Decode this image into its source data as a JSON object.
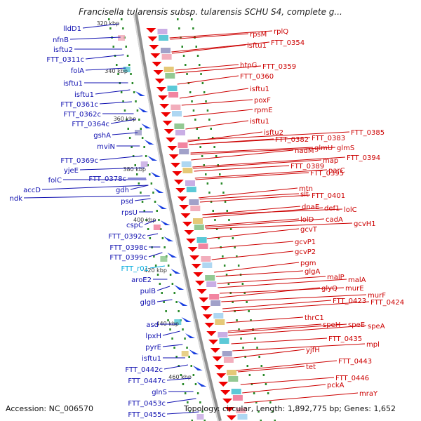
{
  "title": "Francisella tularensis subsp. tularensis SCHU S4, complete g...",
  "accession": "Accession: NC_006570",
  "topology": "Topology: circular, Length: 1,892,775 bp; Genes: 1,652",
  "colors": {
    "left_label": "#1010b0",
    "right_label": "#cc0000",
    "rna_label": "#00aadd",
    "forward_arrow": "#1a3fe0",
    "reverse_arrow": "#ee0000",
    "backbone": "#909090",
    "tick": "#2a8a2a"
  },
  "kbp_ticks": [
    "320 kbp",
    "340 kbp",
    "360 kbp",
    "380 kbp",
    "400 kbp",
    "420 kbp",
    "440 kbp",
    "460 kbp"
  ],
  "left_labels": [
    "lldD1",
    "nfnB",
    "isftu2",
    "FTT_0311c",
    "folA",
    "isftu1",
    "isftu1",
    "FTT_0361c",
    "FTT_0362c",
    "FTT_0364c",
    "gshA",
    "mviN",
    "FTT_0369c",
    "yjeE",
    "folC",
    "accD",
    "ndk",
    "FTT_0378c",
    "gdh",
    "psd",
    "rpsU",
    "cspC",
    "FTT_0392c",
    "FTT_0398c",
    "FTT_0399c",
    "FTT_r01",
    "aroE2",
    "pulB",
    "glgB",
    "asd",
    "lpxH",
    "pyrE",
    "isftu1",
    "FTT_0442c",
    "FTT_0447c",
    "glnS",
    "FTT_0453c",
    "FTT_0455c"
  ],
  "right_labels": [
    "rpsM",
    "rplQ",
    "isftu1",
    "FTT_0354",
    "htpG",
    "FTT_0359",
    "FTT_0360",
    "isftu1",
    "poxF",
    "rpmE",
    "isftu1",
    "isftu2",
    "FTT_0382",
    "FTT_0383",
    "FTT_0385",
    "nadM",
    "glmU",
    "glmS",
    "map",
    "FTT_0394",
    "FTT_0389",
    "FTT_0395",
    "parC",
    "mtn",
    "slt",
    "FTT_0401",
    "dnaE",
    "def1",
    "lolC",
    "lolD",
    "cadA",
    "gcvT",
    "gcvH1",
    "gcvP1",
    "gcvP2",
    "pgm",
    "glgA",
    "malP",
    "malA",
    "glyQ",
    "murE",
    "murF",
    "FTT_0423",
    "FTT_0424",
    "thrC1",
    "speH",
    "speE",
    "speA",
    "FTT_0435",
    "mpl",
    "yjfH",
    "FTT_0443",
    "tet",
    "FTT_0446",
    "pckA",
    "mraY"
  ]
}
